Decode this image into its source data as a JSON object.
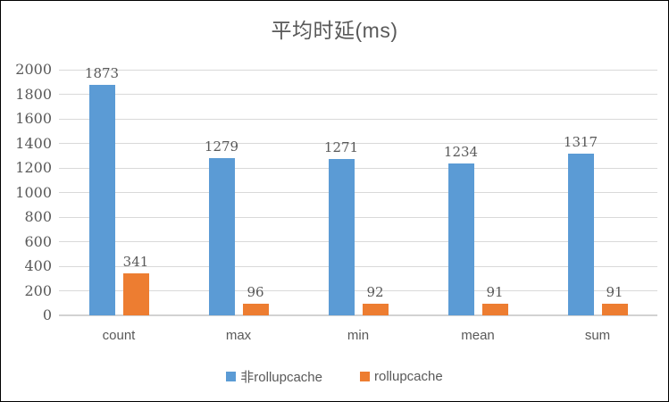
{
  "colors": {
    "series_blue": "#5B9BD5",
    "series_orange": "#ED7D31",
    "gridline": "#D9D9D9",
    "axis_text": "#595959",
    "title_text": "#595959",
    "frame_border": "#000000",
    "background": "#FFFFFF"
  },
  "chart_data": {
    "type": "bar",
    "title": "平均时延(ms)",
    "categories": [
      "count",
      "max",
      "min",
      "mean",
      "sum"
    ],
    "series": [
      {
        "name": "非rollupcache",
        "color": "#5B9BD5",
        "values": [
          1873,
          1279,
          1271,
          1234,
          1317
        ]
      },
      {
        "name": "rollupcache",
        "color": "#ED7D31",
        "values": [
          341,
          96,
          92,
          91,
          91
        ]
      }
    ],
    "data_labels": {
      "非rollupcache": [
        "1873",
        "1279",
        "1271",
        "1234",
        "1317"
      ],
      "rollupcache": [
        "341",
        "96",
        "92",
        "91",
        "91"
      ]
    },
    "xlabel": "",
    "ylabel": "",
    "ylim": [
      0,
      2000
    ],
    "ytick_step": 200,
    "ytick_labels": [
      "0",
      "200",
      "400",
      "600",
      "800",
      "1000",
      "1200",
      "1400",
      "1600",
      "1800",
      "2000"
    ],
    "grid": "horizontal",
    "legend_position": "bottom"
  }
}
